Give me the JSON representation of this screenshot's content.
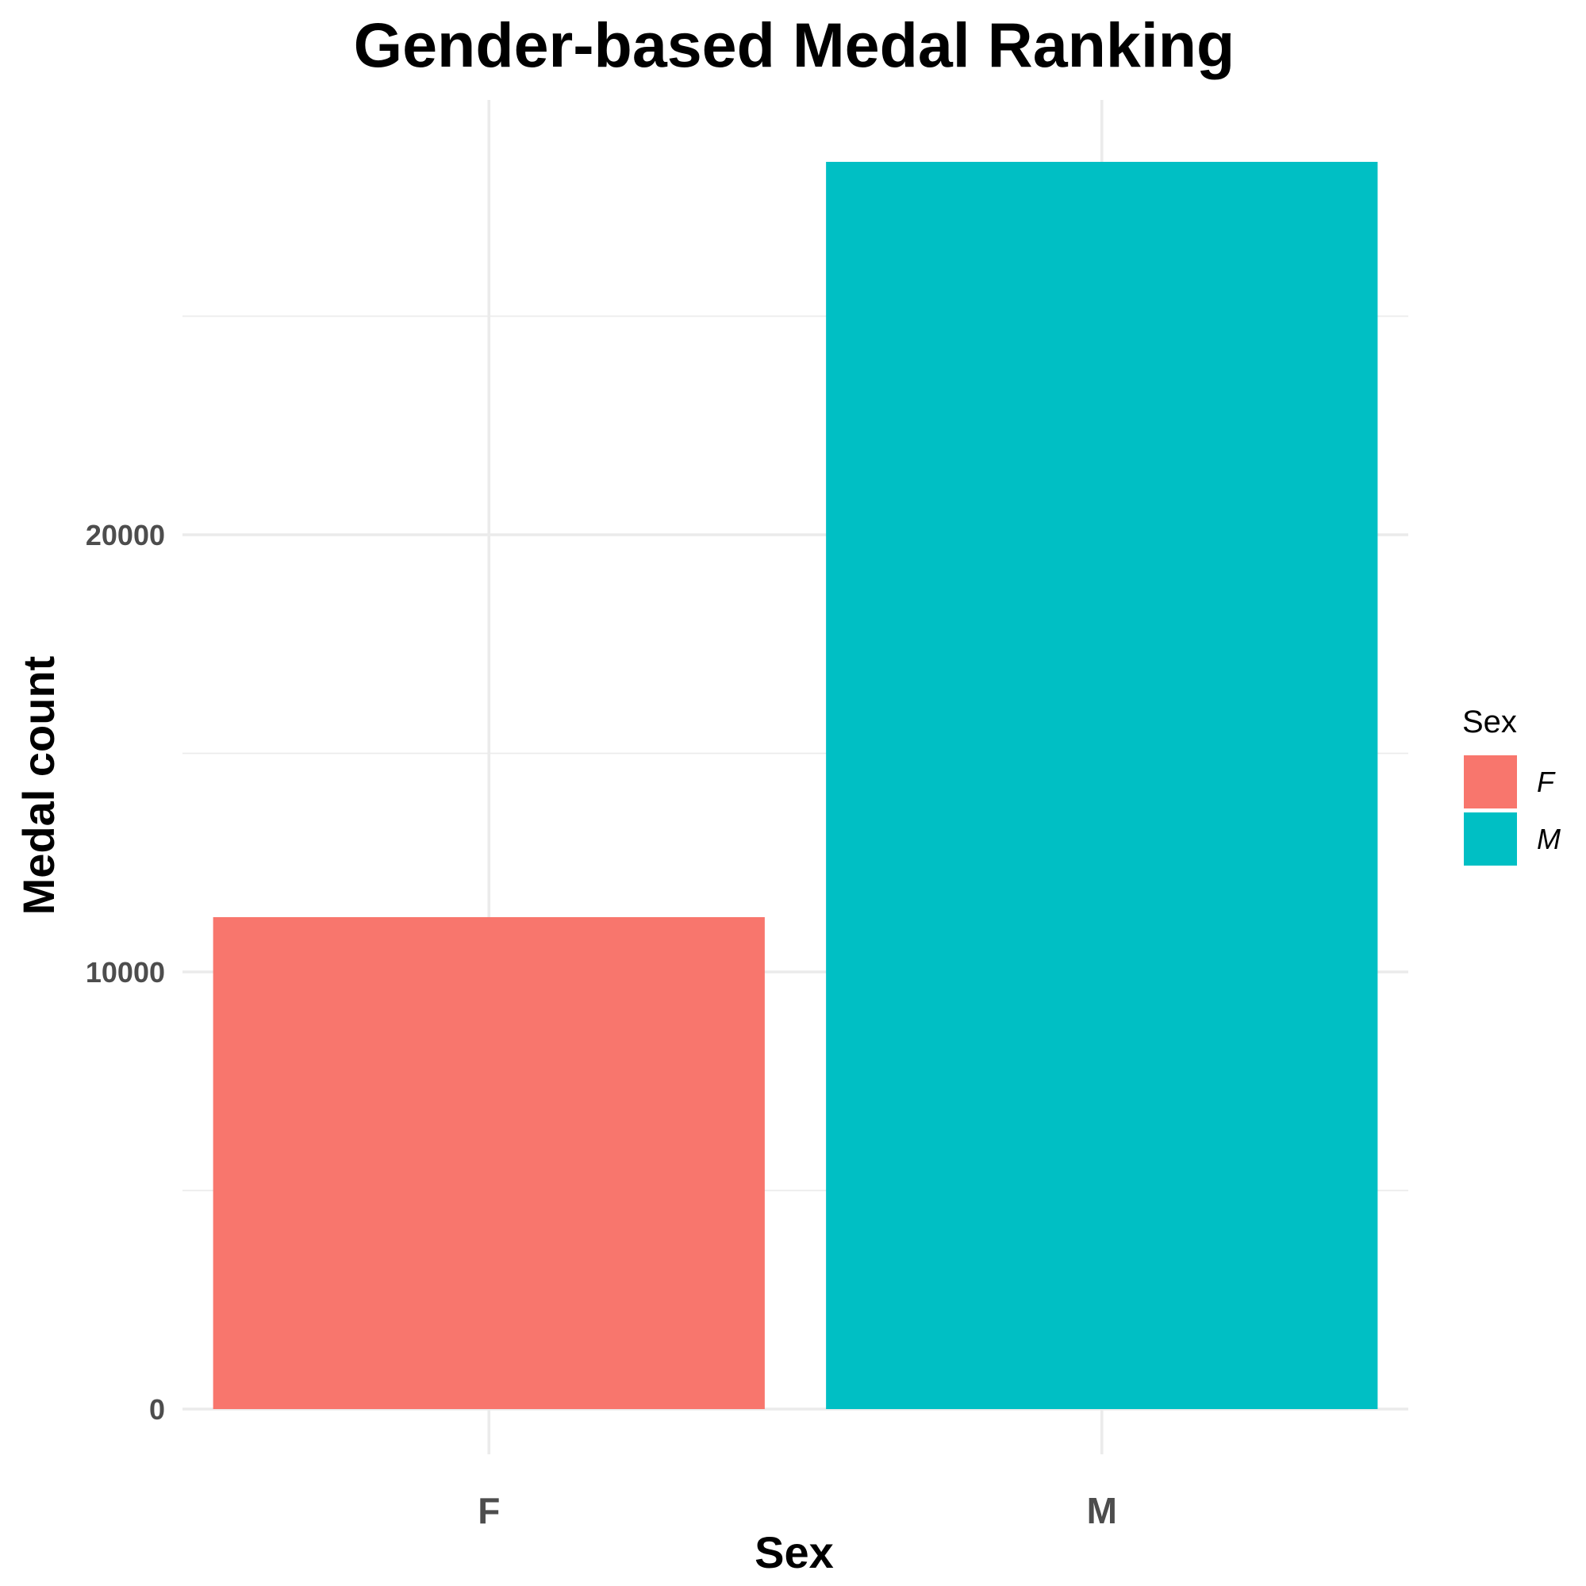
{
  "chart_data": {
    "type": "bar",
    "title": "Gender-based Medal Ranking",
    "xlabel": "Sex",
    "ylabel": "Medal count",
    "categories": [
      "F",
      "M"
    ],
    "values": [
      11253,
      28530
    ],
    "colors": [
      "#F8766D",
      "#00BFC4"
    ],
    "ylim": [
      0,
      30000
    ],
    "yticks": [
      0,
      10000,
      20000
    ],
    "yticks_labels": [
      "0",
      "10000",
      "20000"
    ],
    "grid": true,
    "legend": {
      "title": "Sex",
      "placement": "right",
      "entries": [
        {
          "label": "F",
          "color": "#F8766D"
        },
        {
          "label": "M",
          "color": "#00BFC4"
        }
      ]
    }
  }
}
